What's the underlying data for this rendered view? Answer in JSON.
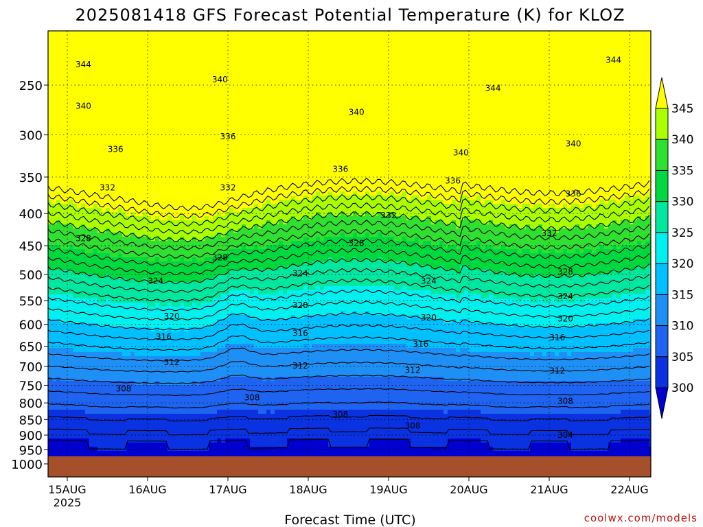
{
  "chart_data": {
    "type": "heatmap",
    "title": "2025081418 GFS Forecast Potential Temperature (K) for KLOZ",
    "xlabel": "Forecast Time (UTC)",
    "ylabel": "",
    "credit": "coolwx.com/models",
    "x_ticks": [
      "15AUG",
      "16AUG",
      "17AUG",
      "18AUG",
      "19AUG",
      "20AUG",
      "21AUG",
      "22AUG"
    ],
    "x_year": "2025",
    "y_ticks": [
      250,
      300,
      350,
      400,
      450,
      500,
      550,
      600,
      650,
      700,
      750,
      800,
      850,
      900,
      950,
      1000
    ],
    "y_axis": "pressure (hPa), log scale, inverted",
    "colorbar": {
      "ticks": [
        300,
        305,
        310,
        315,
        320,
        325,
        330,
        335,
        340,
        345
      ],
      "colors": [
        "#0000d0",
        "#0a32e0",
        "#1e64f0",
        "#1e90f5",
        "#00c0ff",
        "#00f0f0",
        "#00e8a0",
        "#00d840",
        "#30e030",
        "#aaff00",
        "#ffff00"
      ]
    },
    "contour_labels": [
      {
        "text": "344",
        "x": 15.2,
        "p": 232
      },
      {
        "text": "340",
        "x": 15.2,
        "p": 270
      },
      {
        "text": "336",
        "x": 15.6,
        "p": 316
      },
      {
        "text": "332",
        "x": 15.5,
        "p": 364
      },
      {
        "text": "328",
        "x": 15.2,
        "p": 438
      },
      {
        "text": "324",
        "x": 16.1,
        "p": 512
      },
      {
        "text": "320",
        "x": 16.3,
        "p": 583
      },
      {
        "text": "316",
        "x": 16.2,
        "p": 628
      },
      {
        "text": "312",
        "x": 16.3,
        "p": 690
      },
      {
        "text": "308",
        "x": 15.7,
        "p": 760
      },
      {
        "text": "340",
        "x": 16.9,
        "p": 245
      },
      {
        "text": "336",
        "x": 17.0,
        "p": 302
      },
      {
        "text": "332",
        "x": 17.0,
        "p": 364
      },
      {
        "text": "328",
        "x": 16.9,
        "p": 470
      },
      {
        "text": "324",
        "x": 17.9,
        "p": 498
      },
      {
        "text": "320",
        "x": 17.9,
        "p": 560
      },
      {
        "text": "316",
        "x": 17.9,
        "p": 620
      },
      {
        "text": "312",
        "x": 17.9,
        "p": 698
      },
      {
        "text": "308",
        "x": 17.3,
        "p": 785
      },
      {
        "text": "340",
        "x": 18.6,
        "p": 276
      },
      {
        "text": "336",
        "x": 18.4,
        "p": 340
      },
      {
        "text": "332",
        "x": 19.0,
        "p": 403
      },
      {
        "text": "328",
        "x": 18.6,
        "p": 446
      },
      {
        "text": "324",
        "x": 19.5,
        "p": 512
      },
      {
        "text": "320",
        "x": 19.5,
        "p": 586
      },
      {
        "text": "316",
        "x": 19.4,
        "p": 645
      },
      {
        "text": "312",
        "x": 19.3,
        "p": 710
      },
      {
        "text": "308",
        "x": 18.4,
        "p": 835
      },
      {
        "text": "308",
        "x": 19.3,
        "p": 870
      },
      {
        "text": "340",
        "x": 19.9,
        "p": 320
      },
      {
        "text": "336",
        "x": 19.8,
        "p": 355
      },
      {
        "text": "344",
        "x": 20.3,
        "p": 253
      },
      {
        "text": "340",
        "x": 21.3,
        "p": 310
      },
      {
        "text": "336",
        "x": 21.3,
        "p": 372
      },
      {
        "text": "332",
        "x": 21.0,
        "p": 430
      },
      {
        "text": "328",
        "x": 21.2,
        "p": 495
      },
      {
        "text": "324",
        "x": 21.2,
        "p": 542
      },
      {
        "text": "320",
        "x": 21.2,
        "p": 588
      },
      {
        "text": "316",
        "x": 21.1,
        "p": 630
      },
      {
        "text": "312",
        "x": 21.1,
        "p": 712
      },
      {
        "text": "308",
        "x": 21.2,
        "p": 795
      },
      {
        "text": "304",
        "x": 21.2,
        "p": 900
      },
      {
        "text": "344",
        "x": 21.8,
        "p": 228
      }
    ]
  }
}
